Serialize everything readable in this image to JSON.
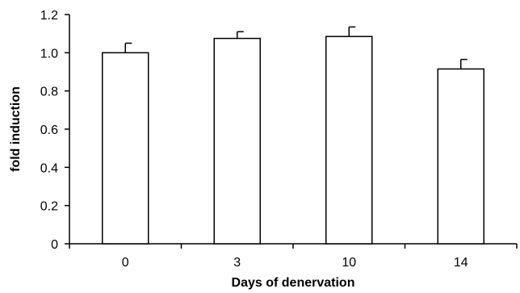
{
  "chart_data": {
    "type": "bar",
    "categories": [
      "0",
      "3",
      "10",
      "14"
    ],
    "values": [
      1.0,
      1.075,
      1.085,
      0.915
    ],
    "errors": [
      0.05,
      0.035,
      0.05,
      0.05
    ],
    "xlabel": "Days of denervation",
    "ylabel": "fold induction",
    "ylim": [
      0,
      1.2
    ],
    "yticks": [
      "0",
      "0.2",
      "0.4",
      "0.6",
      "0.8",
      "1.0",
      "1.2"
    ],
    "grid": false,
    "bar_fill": "#ffffff",
    "bar_stroke": "#000000"
  }
}
